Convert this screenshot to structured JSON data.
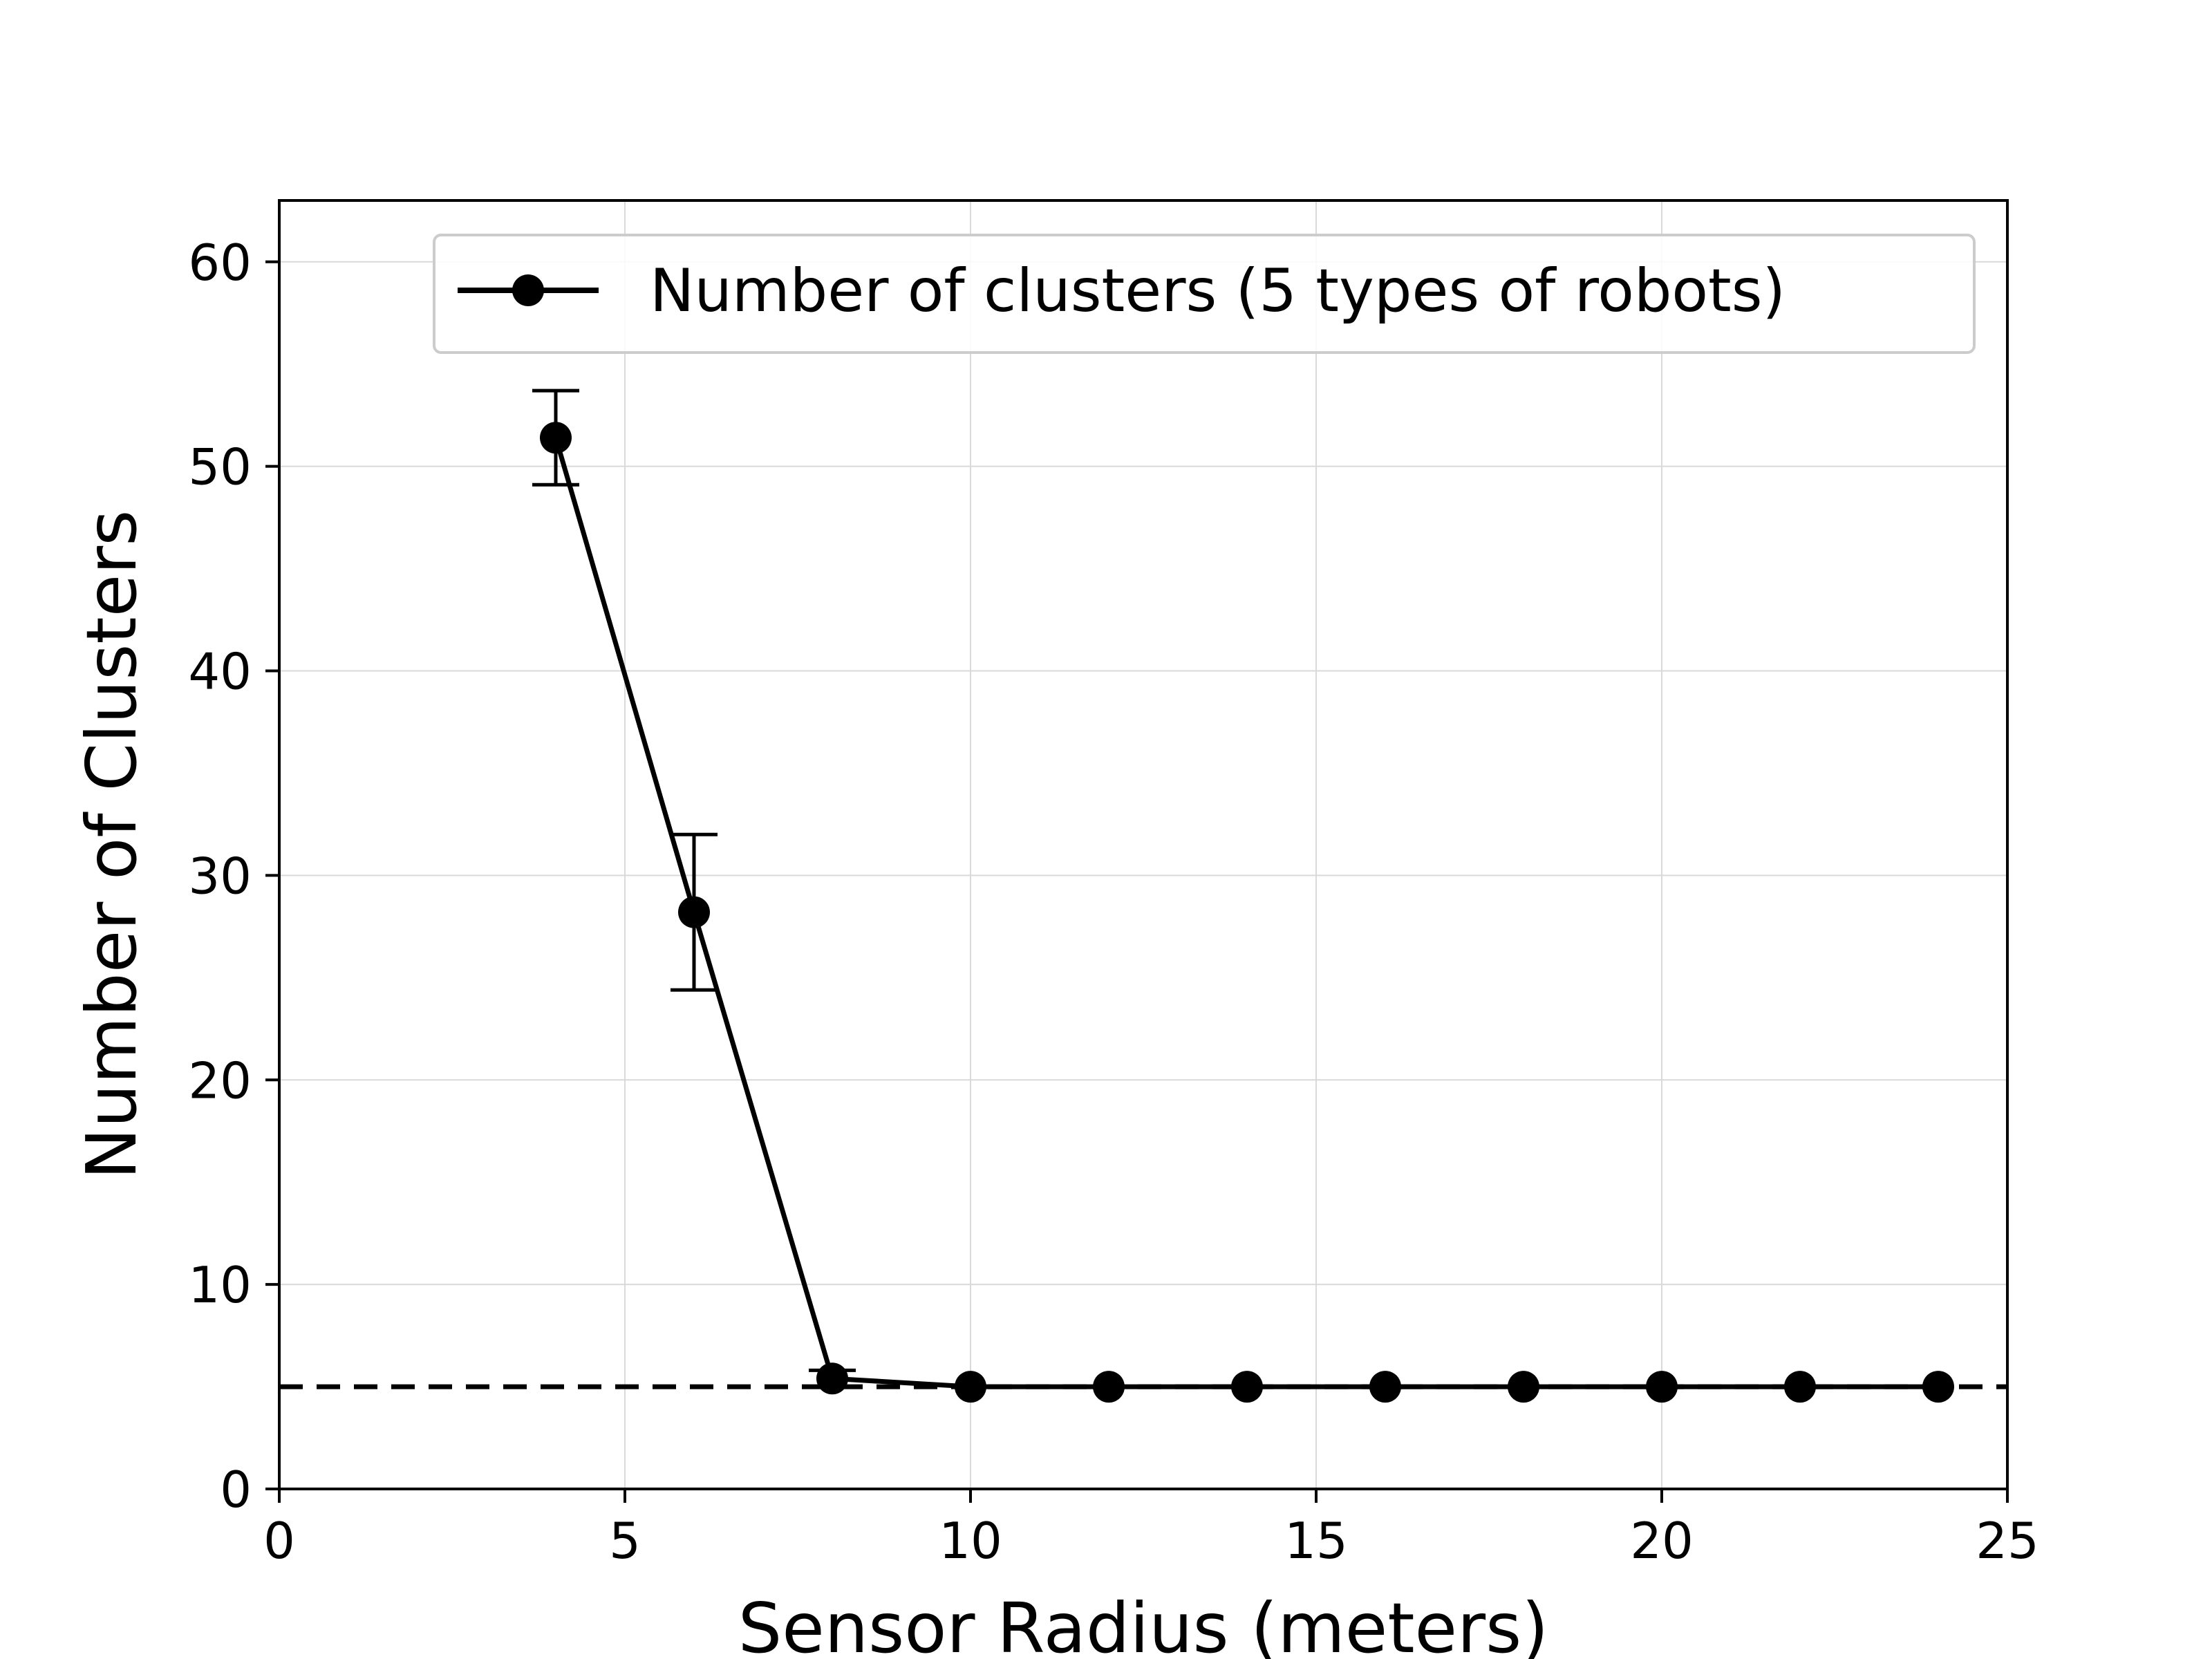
{
  "chart_data": {
    "type": "line",
    "xlabel": "Sensor Radius (meters)",
    "ylabel": "Number of Clusters",
    "xlim": [
      0,
      25
    ],
    "ylim": [
      0,
      63
    ],
    "x_ticks": [
      0,
      5,
      10,
      15,
      20,
      25
    ],
    "y_ticks": [
      0,
      10,
      20,
      30,
      40,
      50,
      60
    ],
    "grid": true,
    "legend_position": "top-right",
    "series": [
      {
        "name": "Number of clusters (5 types of robots)",
        "color": "#000000",
        "marker": "circle",
        "x": [
          4,
          6,
          8,
          10,
          12,
          14,
          16,
          18,
          20,
          22,
          24
        ],
        "y": [
          51.4,
          28.2,
          5.4,
          5.0,
          5.0,
          5.0,
          5.0,
          5.0,
          5.0,
          5.0,
          5.0
        ],
        "error": [
          2.3,
          3.8,
          0.4,
          0,
          0,
          0,
          0,
          0,
          0,
          0,
          0
        ]
      }
    ],
    "reference_line": {
      "y": 5,
      "style": "dashed",
      "color": "#000000"
    }
  }
}
